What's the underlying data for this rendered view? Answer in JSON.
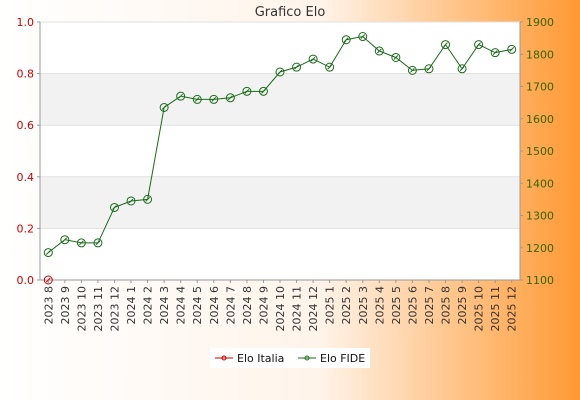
{
  "chart_data": {
    "type": "line",
    "title": "Grafico Elo",
    "categories": [
      "2023 8",
      "2023 9",
      "2023 10",
      "2023 11",
      "2023 12",
      "2024 1",
      "2024 2",
      "2024 3",
      "2024 4",
      "2024 5",
      "2024 6",
      "2024 7",
      "2024 8",
      "2024 9",
      "2024 10",
      "2024 11",
      "2024 12",
      "2025 1",
      "2025 2",
      "2025 3",
      "2025 4",
      "2025 5",
      "2025 6",
      "2025 7",
      "2025 8",
      "2025 9",
      "2025 10",
      "2025 11",
      "2025 12"
    ],
    "series": [
      {
        "name": "Elo Italia",
        "axis": "left",
        "color": "#cc0000",
        "values": [
          0,
          null,
          null,
          null,
          null,
          null,
          null,
          null,
          null,
          null,
          null,
          null,
          null,
          null,
          null,
          null,
          null,
          null,
          null,
          null,
          null,
          null,
          null,
          null,
          null,
          null,
          null,
          null,
          null
        ]
      },
      {
        "name": "Elo FIDE",
        "axis": "right",
        "color": "#1a6b1a",
        "values": [
          1185,
          1225,
          1215,
          1215,
          1325,
          1345,
          1350,
          1635,
          1670,
          1660,
          1660,
          1665,
          1685,
          1685,
          1745,
          1760,
          1785,
          1760,
          1845,
          1855,
          1810,
          1790,
          1750,
          1755,
          1830,
          1755,
          1830,
          1805,
          1815
        ]
      }
    ],
    "y_left": {
      "ylim": [
        0,
        1
      ],
      "ticks": [
        "0.0",
        "0.2",
        "0.4",
        "0.6",
        "0.8",
        "1.0"
      ]
    },
    "y_right": {
      "ylim": [
        1100,
        1900
      ],
      "ticks": [
        "1100",
        "1200",
        "1300",
        "1400",
        "1500",
        "1600",
        "1700",
        "1800",
        "1900"
      ]
    },
    "grid": "horizontal bands",
    "legend": {
      "placement": "bottom-center",
      "entries": [
        "Elo Italia",
        "Elo FIDE"
      ]
    },
    "colors": {
      "bg_left": "#ffffff",
      "bg_right": "#ff9933",
      "band": "#f2f2f2",
      "plot_bg": "#ffffff"
    }
  }
}
